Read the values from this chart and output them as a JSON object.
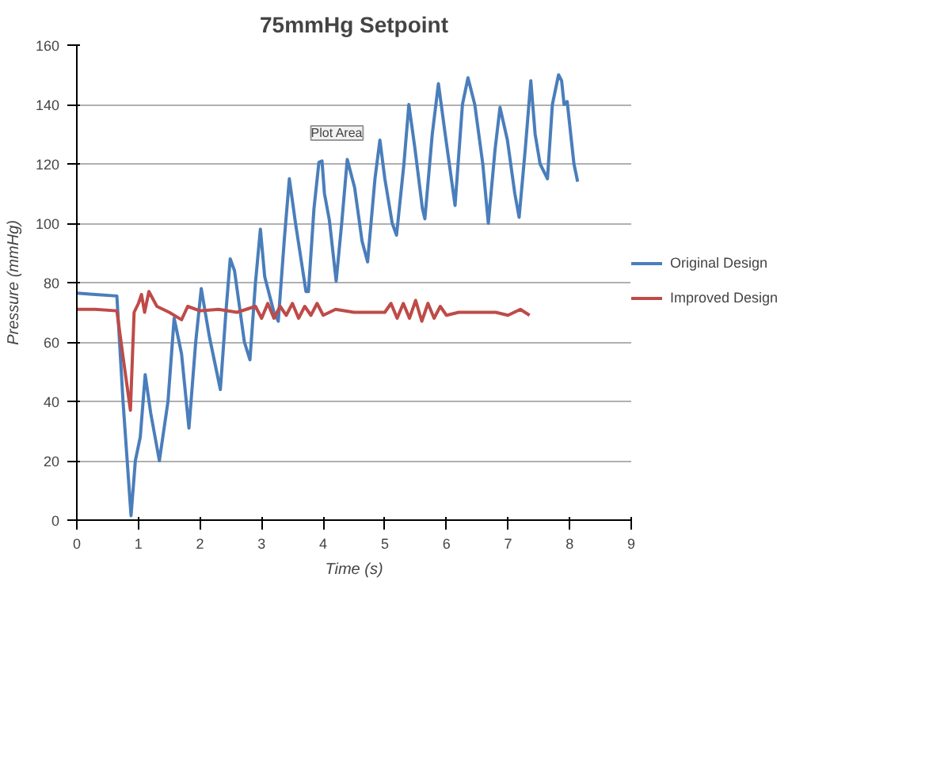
{
  "chart_data": {
    "type": "line",
    "title": "75mmHg Setpoint",
    "xlabel": "Time (s)",
    "ylabel": "Pressure (mmHg)",
    "xlim": [
      0,
      9
    ],
    "xticks": [
      0,
      1,
      2,
      3,
      4,
      5,
      6,
      7,
      8,
      9
    ],
    "ylim": [
      0,
      160
    ],
    "yticks": [
      0,
      20,
      40,
      60,
      80,
      100,
      120,
      140,
      160
    ],
    "grid": "y",
    "legend": "right",
    "line_style": "solid",
    "marker": "none",
    "annotations": [
      "Plot Area"
    ],
    "series": [
      {
        "name": "Original Design",
        "color": "#4a7ebb",
        "x": [
          0,
          0.3,
          0.65,
          0.75,
          0.88,
          0.95,
          1.03,
          1.11,
          1.2,
          1.34,
          1.48,
          1.58,
          1.7,
          1.82,
          1.93,
          2.02,
          2.15,
          2.33,
          2.42,
          2.49,
          2.56,
          2.72,
          2.81,
          2.9,
          2.98,
          3.05,
          3.2,
          3.27,
          3.37,
          3.45,
          3.55,
          3.72,
          3.76,
          3.85,
          3.93,
          3.98,
          4.02,
          4.1,
          4.21,
          4.3,
          4.39,
          4.51,
          4.63,
          4.72,
          4.84,
          4.92,
          5.0,
          5.12,
          5.19,
          5.31,
          5.39,
          5.49,
          5.61,
          5.65,
          5.77,
          5.87,
          5.98,
          6.14,
          6.26,
          6.35,
          6.46,
          6.59,
          6.68,
          6.79,
          6.87,
          6.99,
          7.11,
          7.18,
          7.28,
          7.37,
          7.44,
          7.52,
          7.64,
          7.72,
          7.82,
          7.87,
          7.91,
          7.96,
          8.07,
          8.13
        ],
        "values": [
          76.5,
          76,
          75.5,
          40,
          1.5,
          20,
          28,
          49,
          36,
          20,
          40,
          68,
          56,
          31,
          60,
          78,
          62,
          44,
          70,
          88,
          84,
          60,
          54,
          80,
          98,
          82,
          70,
          67,
          95,
          115,
          100,
          77,
          77,
          105,
          120.5,
          121,
          110,
          101,
          80.5,
          100,
          121.5,
          112,
          94,
          87,
          115,
          128,
          115,
          100,
          96,
          120,
          140,
          125,
          105,
          101.5,
          130,
          147,
          130,
          106,
          140,
          149,
          140,
          120,
          100,
          125,
          139,
          128,
          110,
          102,
          125,
          148,
          130,
          120,
          115,
          140,
          150,
          148,
          140,
          141,
          120,
          114
        ]
      },
      {
        "name": "Improved Design",
        "color": "#be4b48",
        "x": [
          0,
          0.3,
          0.65,
          0.75,
          0.87,
          0.93,
          1.0,
          1.05,
          1.1,
          1.17,
          1.3,
          1.5,
          1.7,
          1.8,
          2.0,
          2.3,
          2.6,
          2.9,
          3.0,
          3.1,
          3.2,
          3.3,
          3.4,
          3.5,
          3.6,
          3.7,
          3.8,
          3.9,
          4.0,
          4.2,
          4.5,
          4.8,
          5.0,
          5.1,
          5.2,
          5.3,
          5.4,
          5.5,
          5.6,
          5.7,
          5.8,
          5.9,
          6.0,
          6.2,
          6.5,
          6.8,
          7.0,
          7.2,
          7.35
        ],
        "values": [
          71,
          71,
          70.5,
          55,
          37,
          70,
          73,
          76,
          70,
          77,
          72,
          70,
          67.5,
          72,
          70.5,
          71,
          70,
          72,
          68,
          73,
          68,
          72,
          69,
          73,
          68,
          72,
          69,
          73,
          69,
          71,
          70,
          70,
          70,
          73,
          68,
          73,
          68,
          74,
          67,
          73,
          68,
          72,
          69,
          70,
          70,
          70,
          69,
          71,
          69
        ]
      }
    ]
  }
}
